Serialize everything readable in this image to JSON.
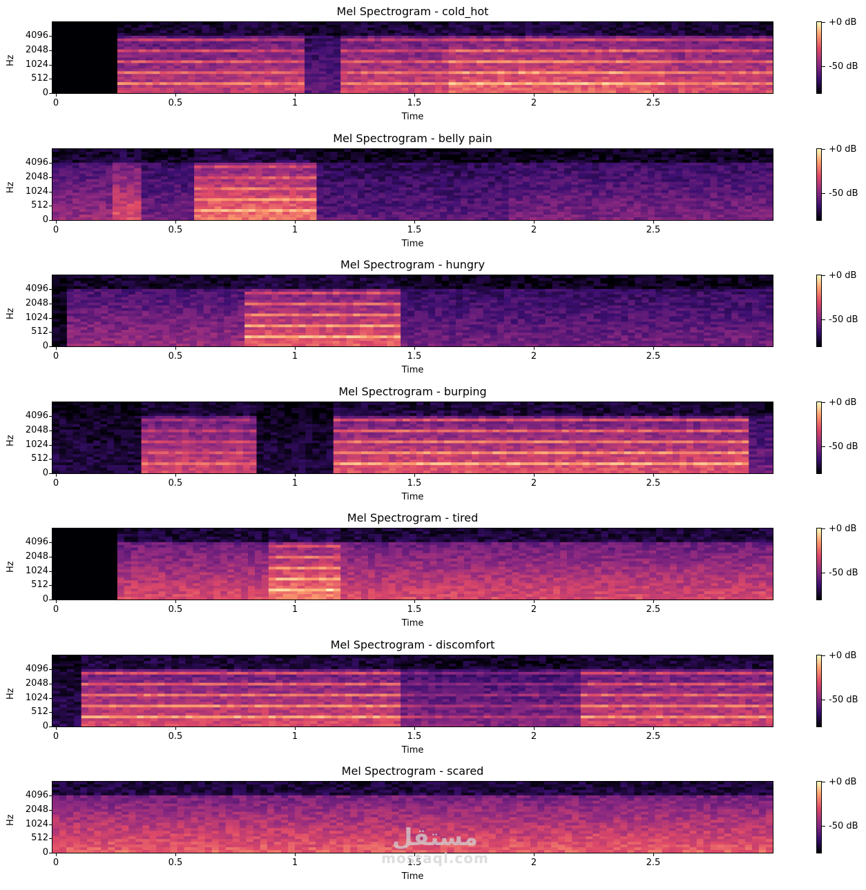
{
  "figure": {
    "colormap": [
      "#000004",
      "#3b0f70",
      "#8c2981",
      "#de4968",
      "#fe9f6d",
      "#fcfdbf"
    ],
    "watermark": {
      "line1": "مستقل",
      "line2": "mostaql.com"
    }
  },
  "chart_data": [
    {
      "type": "heatmap",
      "title": "Mel Spectrogram - cold_hot",
      "xlabel": "Time",
      "ylabel": "Hz",
      "xlim": [
        0,
        3.0
      ],
      "x_ticks": [
        "0",
        "0.5",
        "1",
        "1.5",
        "2",
        "2.5"
      ],
      "y_ticks": [
        "0",
        "512",
        "1024",
        "2048",
        "4096"
      ],
      "colorbar": {
        "ticks": [
          "+0 dB",
          "-50 dB"
        ],
        "range_db": [
          -80,
          0
        ]
      },
      "segments": [
        {
          "t0": 0.0,
          "t1": 0.27,
          "level": 0.0,
          "harmonic": 0.0
        },
        {
          "t0": 0.27,
          "t1": 0.8,
          "level": 0.55,
          "harmonic": 0.85
        },
        {
          "t0": 0.8,
          "t1": 1.05,
          "level": 0.6,
          "harmonic": 0.6
        },
        {
          "t0": 1.05,
          "t1": 1.2,
          "level": 0.3,
          "harmonic": 0.2
        },
        {
          "t0": 1.2,
          "t1": 1.65,
          "level": 0.6,
          "harmonic": 0.7
        },
        {
          "t0": 1.65,
          "t1": 2.55,
          "level": 0.7,
          "harmonic": 0.85
        },
        {
          "t0": 2.55,
          "t1": 3.0,
          "level": 0.62,
          "harmonic": 0.7
        }
      ]
    },
    {
      "type": "heatmap",
      "title": "Mel Spectrogram - belly pain",
      "xlabel": "Time",
      "ylabel": "Hz",
      "xlim": [
        0,
        3.0
      ],
      "x_ticks": [
        "0",
        "0.5",
        "1",
        "1.5",
        "2",
        "2.5"
      ],
      "y_ticks": [
        "0",
        "512",
        "1024",
        "2048",
        "4096"
      ],
      "colorbar": {
        "ticks": [
          "+0 dB",
          "-50 dB"
        ],
        "range_db": [
          -80,
          0
        ]
      },
      "segments": [
        {
          "t0": 0.0,
          "t1": 0.25,
          "level": 0.45,
          "harmonic": 0.3
        },
        {
          "t0": 0.25,
          "t1": 0.37,
          "level": 0.65,
          "harmonic": 0.3
        },
        {
          "t0": 0.37,
          "t1": 0.59,
          "level": 0.35,
          "harmonic": 0.1
        },
        {
          "t0": 0.59,
          "t1": 1.1,
          "level": 0.75,
          "harmonic": 0.6
        },
        {
          "t0": 1.1,
          "t1": 1.9,
          "level": 0.3,
          "harmonic": 0.1
        },
        {
          "t0": 1.9,
          "t1": 3.0,
          "level": 0.38,
          "harmonic": 0.1
        }
      ]
    },
    {
      "type": "heatmap",
      "title": "Mel Spectrogram - hungry",
      "xlabel": "Time",
      "ylabel": "Hz",
      "xlim": [
        0,
        3.0
      ],
      "x_ticks": [
        "0",
        "0.5",
        "1",
        "1.5",
        "2",
        "2.5"
      ],
      "y_ticks": [
        "0",
        "512",
        "1024",
        "2048",
        "4096"
      ],
      "colorbar": {
        "ticks": [
          "+0 dB",
          "-50 dB"
        ],
        "range_db": [
          -80,
          0
        ]
      },
      "segments": [
        {
          "t0": 0.0,
          "t1": 0.06,
          "level": 0.05,
          "harmonic": 0.0
        },
        {
          "t0": 0.06,
          "t1": 0.8,
          "level": 0.45,
          "harmonic": 0.2
        },
        {
          "t0": 0.8,
          "t1": 1.45,
          "level": 0.68,
          "harmonic": 0.85
        },
        {
          "t0": 1.45,
          "t1": 3.0,
          "level": 0.35,
          "harmonic": 0.1
        }
      ]
    },
    {
      "type": "heatmap",
      "title": "Mel Spectrogram - burping",
      "xlabel": "Time",
      "ylabel": "Hz",
      "xlim": [
        0,
        3.0
      ],
      "x_ticks": [
        "0",
        "0.5",
        "1",
        "1.5",
        "2",
        "2.5"
      ],
      "y_ticks": [
        "0",
        "512",
        "1024",
        "2048",
        "4096"
      ],
      "colorbar": {
        "ticks": [
          "+0 dB",
          "-50 dB"
        ],
        "range_db": [
          -80,
          0
        ]
      },
      "segments": [
        {
          "t0": 0.0,
          "t1": 0.37,
          "level": 0.12,
          "harmonic": 0.1
        },
        {
          "t0": 0.37,
          "t1": 0.85,
          "level": 0.6,
          "harmonic": 0.5
        },
        {
          "t0": 0.85,
          "t1": 1.17,
          "level": 0.12,
          "harmonic": 0.1
        },
        {
          "t0": 1.17,
          "t1": 2.9,
          "level": 0.65,
          "harmonic": 0.9
        },
        {
          "t0": 2.9,
          "t1": 3.0,
          "level": 0.35,
          "harmonic": 0.3
        }
      ]
    },
    {
      "type": "heatmap",
      "title": "Mel Spectrogram - tired",
      "xlabel": "Time",
      "ylabel": "Hz",
      "xlim": [
        0,
        3.0
      ],
      "x_ticks": [
        "0",
        "0.5",
        "1",
        "1.5",
        "2",
        "2.5"
      ],
      "y_ticks": [
        "0",
        "512",
        "1024",
        "2048",
        "4096"
      ],
      "colorbar": {
        "ticks": [
          "+0 dB",
          "-50 dB"
        ],
        "range_db": [
          -80,
          0
        ]
      },
      "segments": [
        {
          "t0": 0.0,
          "t1": 0.27,
          "level": 0.0,
          "harmonic": 0.0
        },
        {
          "t0": 0.27,
          "t1": 0.9,
          "level": 0.62,
          "harmonic": 0.3
        },
        {
          "t0": 0.9,
          "t1": 1.2,
          "level": 0.78,
          "harmonic": 0.75
        },
        {
          "t0": 1.2,
          "t1": 3.0,
          "level": 0.62,
          "harmonic": 0.3
        }
      ]
    },
    {
      "type": "heatmap",
      "title": "Mel Spectrogram - discomfort",
      "xlabel": "Time",
      "ylabel": "Hz",
      "xlim": [
        0,
        3.0
      ],
      "x_ticks": [
        "0",
        "0.5",
        "1",
        "1.5",
        "2",
        "2.5"
      ],
      "y_ticks": [
        "0",
        "512",
        "1024",
        "2048",
        "4096"
      ],
      "colorbar": {
        "ticks": [
          "+0 dB",
          "-50 dB"
        ],
        "range_db": [
          -80,
          0
        ]
      },
      "segments": [
        {
          "t0": 0.0,
          "t1": 0.12,
          "level": 0.15,
          "harmonic": 0.2
        },
        {
          "t0": 0.12,
          "t1": 1.45,
          "level": 0.62,
          "harmonic": 0.9
        },
        {
          "t0": 1.45,
          "t1": 2.2,
          "level": 0.4,
          "harmonic": 0.5
        },
        {
          "t0": 2.2,
          "t1": 3.0,
          "level": 0.6,
          "harmonic": 0.85
        }
      ]
    },
    {
      "type": "heatmap",
      "title": "Mel Spectrogram - scared",
      "xlabel": "Time",
      "ylabel": "Hz",
      "xlim": [
        0,
        3.0
      ],
      "x_ticks": [
        "0",
        "0.5",
        "1",
        "1.5",
        "2",
        "2.5"
      ],
      "y_ticks": [
        "0",
        "512",
        "1024",
        "2048",
        "4096"
      ],
      "colorbar": {
        "ticks": [
          "+0 dB",
          "-50 dB"
        ],
        "range_db": [
          -80,
          0
        ]
      },
      "segments": [
        {
          "t0": 0.0,
          "t1": 3.0,
          "level": 0.68,
          "harmonic": 0.25
        }
      ]
    }
  ]
}
